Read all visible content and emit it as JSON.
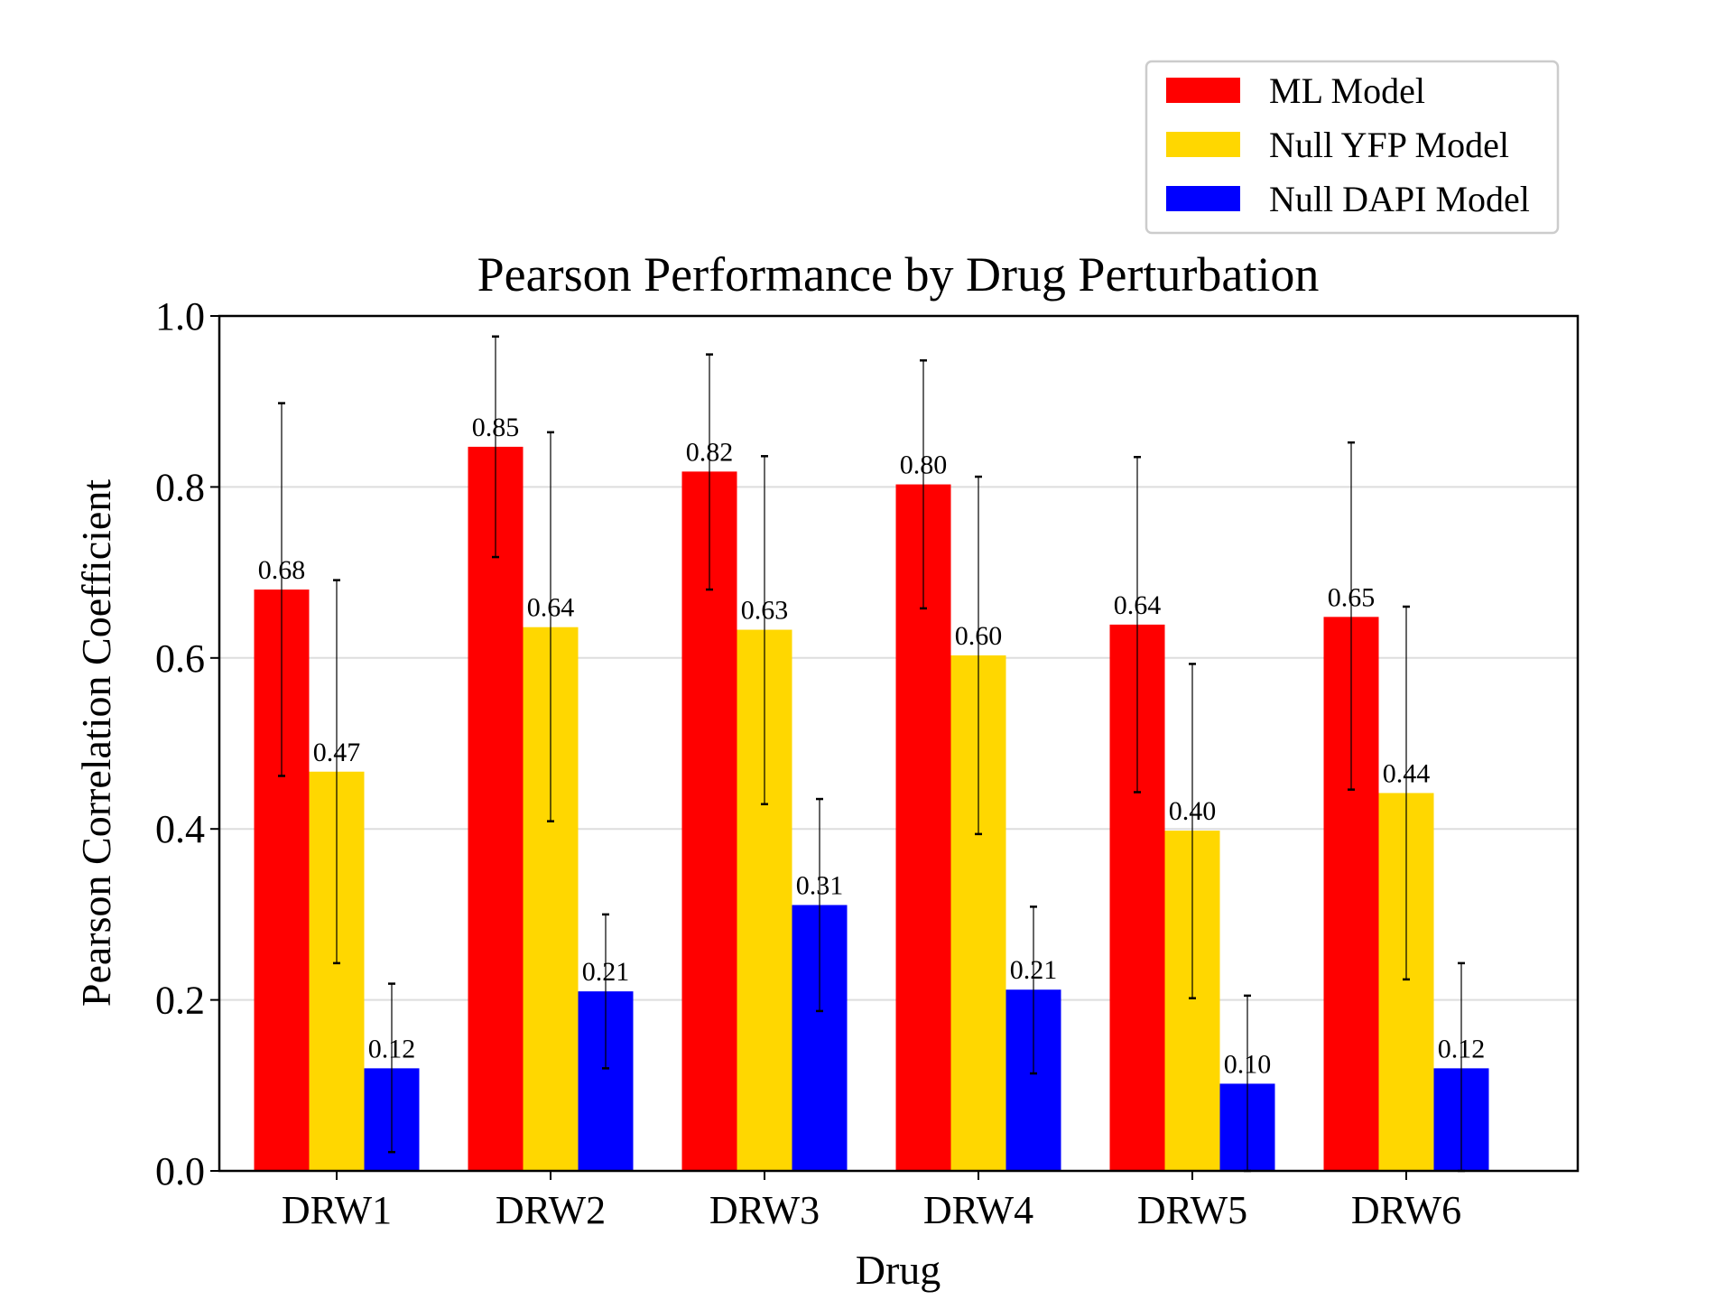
{
  "chart_data": {
    "type": "bar",
    "title": "Pearson Performance by Drug Perturbation",
    "xlabel": "Drug",
    "ylabel": "Pearson Correlation Coefficient",
    "ylim": [
      0,
      1.0
    ],
    "yticks": [
      "0.0",
      "0.2",
      "0.4",
      "0.6",
      "0.8",
      "1.0"
    ],
    "categories": [
      "DRW1",
      "DRW2",
      "DRW3",
      "DRW4",
      "DRW5",
      "DRW6"
    ],
    "grid": "horizontal",
    "legend_position": "top-right",
    "series": [
      {
        "name": "ML Model",
        "color": "#ff0000",
        "values": [
          0.68,
          0.847,
          0.818,
          0.803,
          0.639,
          0.648
        ],
        "labels": [
          "0.68",
          "0.85",
          "0.82",
          "0.80",
          "0.64",
          "0.65"
        ],
        "error_low": [
          0.462,
          0.718,
          0.68,
          0.658,
          0.443,
          0.446
        ],
        "error_high": [
          0.898,
          0.976,
          0.955,
          0.948,
          0.835,
          0.852
        ]
      },
      {
        "name": "Null YFP Model",
        "color": "#ffd700",
        "values": [
          0.467,
          0.636,
          0.633,
          0.603,
          0.398,
          0.442
        ],
        "labels": [
          "0.47",
          "0.64",
          "0.63",
          "0.60",
          "0.40",
          "0.44"
        ],
        "error_low": [
          0.243,
          0.409,
          0.429,
          0.394,
          0.202,
          0.224
        ],
        "error_high": [
          0.691,
          0.864,
          0.836,
          0.812,
          0.593,
          0.66
        ]
      },
      {
        "name": "Null DAPI Model",
        "color": "#0000ff",
        "values": [
          0.12,
          0.21,
          0.311,
          0.212,
          0.102,
          0.12
        ],
        "labels": [
          "0.12",
          "0.21",
          "0.31",
          "0.21",
          "0.10",
          "0.12"
        ],
        "error_low": [
          0.022,
          0.12,
          0.187,
          0.114,
          0.0,
          0.0
        ],
        "error_high": [
          0.219,
          0.3,
          0.435,
          0.309,
          0.205,
          0.243
        ]
      }
    ]
  }
}
